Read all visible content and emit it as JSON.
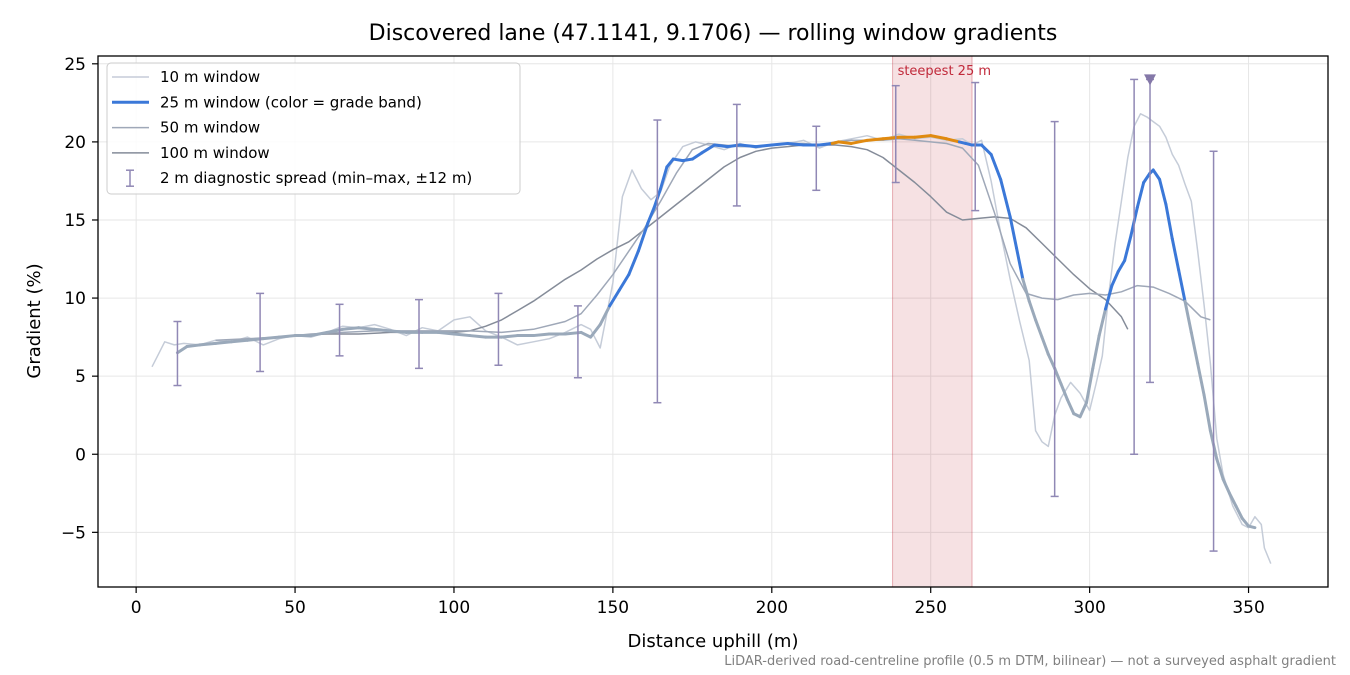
{
  "chart_data": {
    "type": "line",
    "title": "Discovered lane (47.1141, 9.1706) — rolling window gradients",
    "xlabel": "Distance uphill (m)",
    "ylabel": "Gradient (%)",
    "xlim": [
      -12,
      375
    ],
    "ylim": [
      -8.5,
      25.5
    ],
    "xticks": [
      0,
      50,
      100,
      150,
      200,
      250,
      300,
      350
    ],
    "yticks": [
      -5,
      0,
      5,
      10,
      15,
      20,
      25
    ],
    "ytick_labels": [
      "−5",
      "0",
      "5",
      "10",
      "15",
      "20",
      "25"
    ],
    "grid": true,
    "legend_position": "upper-left",
    "footnote": "LiDAR-derived road-centreline profile (0.5 m DTM, bilinear) — not a surveyed asphalt gradient",
    "annotation": {
      "text": "steepest 25 m",
      "x_range": [
        238,
        263
      ],
      "color": "#c0293a"
    },
    "peak_marker": {
      "x": 319,
      "y": 24,
      "color": "#8478a8"
    },
    "grade_band_colors": {
      "steep": "#e08a10",
      "moderate": "#3b78d8",
      "gentle": "#9aa9ba"
    },
    "series": [
      {
        "name": "10 m window",
        "color": "#c5ccd8",
        "x": [
          5,
          7,
          9,
          12,
          15,
          20,
          25,
          30,
          35,
          40,
          45,
          50,
          55,
          60,
          65,
          70,
          75,
          80,
          85,
          90,
          95,
          100,
          105,
          110,
          115,
          120,
          125,
          130,
          135,
          140,
          143,
          146,
          150,
          153,
          156,
          159,
          162,
          165,
          168,
          172,
          176,
          180,
          185,
          190,
          195,
          200,
          205,
          210,
          215,
          220,
          225,
          230,
          235,
          240,
          245,
          250,
          255,
          260,
          263,
          266,
          269,
          272,
          275,
          278,
          281,
          283,
          285,
          287,
          289,
          291,
          294,
          297,
          300,
          302,
          304,
          306,
          308,
          310,
          312,
          314,
          316,
          318,
          320,
          322,
          324,
          326,
          328,
          330,
          332,
          334,
          336,
          338,
          340,
          342,
          345,
          348,
          350,
          352,
          354,
          355,
          357
        ],
        "y": [
          5.6,
          6.4,
          7.2,
          7.0,
          7.1,
          7.0,
          7.3,
          7.2,
          7.5,
          7.0,
          7.4,
          7.6,
          7.5,
          7.8,
          8.2,
          8.1,
          8.3,
          8.0,
          7.6,
          8.1,
          7.9,
          8.6,
          8.8,
          7.9,
          7.5,
          7.0,
          7.2,
          7.4,
          7.8,
          8.3,
          8.0,
          6.8,
          11.0,
          16.5,
          18.2,
          17.0,
          16.3,
          16.8,
          18.5,
          19.7,
          20.0,
          19.8,
          19.5,
          19.9,
          19.6,
          19.8,
          19.9,
          20.1,
          19.6,
          20.0,
          20.2,
          20.4,
          20.1,
          20.5,
          20.2,
          20.3,
          20.1,
          20.2,
          19.8,
          20.1,
          17.5,
          14.2,
          11.2,
          8.5,
          6.0,
          1.5,
          0.8,
          0.5,
          2.5,
          3.6,
          4.6,
          3.9,
          2.8,
          4.5,
          6.3,
          10.2,
          13.5,
          16.2,
          19.0,
          21.0,
          21.8,
          21.6,
          21.3,
          21.0,
          20.3,
          19.2,
          18.5,
          17.3,
          16.2,
          13.0,
          9.6,
          5.8,
          1.0,
          -1.3,
          -3.3,
          -4.5,
          -4.7,
          -4.0,
          -4.5,
          -6.0,
          -7.0
        ]
      },
      {
        "name": "25 m window (color = grade band)",
        "color": "#3b78d8",
        "x": [
          13,
          16,
          20,
          25,
          30,
          35,
          40,
          45,
          50,
          55,
          60,
          65,
          70,
          75,
          80,
          85,
          90,
          95,
          100,
          105,
          110,
          115,
          120,
          125,
          130,
          135,
          140,
          143,
          146,
          149,
          152,
          155,
          158,
          161,
          163,
          165,
          167,
          169,
          172,
          175,
          178,
          182,
          186,
          190,
          195,
          200,
          205,
          210,
          215,
          219,
          221,
          225,
          230,
          235,
          240,
          245,
          250,
          255,
          259,
          261,
          263,
          266,
          269,
          272,
          275,
          277,
          279,
          281,
          283,
          285,
          287,
          289,
          291,
          293,
          295,
          297,
          299,
          301,
          303,
          305,
          307,
          309,
          311,
          313,
          315,
          317,
          319,
          320,
          322,
          324,
          326,
          328,
          330,
          332,
          334,
          336,
          338,
          340,
          342,
          344,
          346,
          348,
          350,
          352
        ],
        "y": [
          6.5,
          6.9,
          7.0,
          7.1,
          7.2,
          7.3,
          7.4,
          7.5,
          7.6,
          7.6,
          7.8,
          8.0,
          8.1,
          8.0,
          7.9,
          7.8,
          7.8,
          7.8,
          7.7,
          7.6,
          7.5,
          7.5,
          7.6,
          7.6,
          7.7,
          7.7,
          7.8,
          7.5,
          8.3,
          9.5,
          10.5,
          11.5,
          13.0,
          14.8,
          15.8,
          17.0,
          18.4,
          18.9,
          18.8,
          18.9,
          19.3,
          19.8,
          19.7,
          19.8,
          19.7,
          19.8,
          19.9,
          19.8,
          19.8,
          19.9,
          20.0,
          19.9,
          20.1,
          20.2,
          20.3,
          20.3,
          20.4,
          20.2,
          20.0,
          19.9,
          19.8,
          19.8,
          19.2,
          17.6,
          15.2,
          13.2,
          11.2,
          9.8,
          8.6,
          7.5,
          6.4,
          5.5,
          4.5,
          3.5,
          2.6,
          2.4,
          3.3,
          5.5,
          7.6,
          9.3,
          10.8,
          11.7,
          12.4,
          14.0,
          15.8,
          17.4,
          18.0,
          18.2,
          17.6,
          16.0,
          13.8,
          11.8,
          9.8,
          7.8,
          5.8,
          3.8,
          1.5,
          -0.3,
          -1.6,
          -2.5,
          -3.3,
          -4.1,
          -4.6,
          -4.7
        ],
        "grade": [
          "gentle",
          "gentle",
          "gentle",
          "gentle",
          "gentle",
          "gentle",
          "gentle",
          "gentle",
          "gentle",
          "gentle",
          "gentle",
          "gentle",
          "gentle",
          "gentle",
          "gentle",
          "gentle",
          "gentle",
          "gentle",
          "gentle",
          "gentle",
          "gentle",
          "gentle",
          "gentle",
          "gentle",
          "gentle",
          "gentle",
          "gentle",
          "gentle",
          "gentle",
          "gentle",
          "moderate",
          "moderate",
          "moderate",
          "moderate",
          "moderate",
          "moderate",
          "moderate",
          "moderate",
          "moderate",
          "moderate",
          "moderate",
          "moderate",
          "moderate",
          "moderate",
          "moderate",
          "moderate",
          "moderate",
          "moderate",
          "moderate",
          "moderate",
          "steep",
          "steep",
          "steep",
          "steep",
          "steep",
          "steep",
          "steep",
          "steep",
          "steep",
          "moderate",
          "moderate",
          "moderate",
          "moderate",
          "moderate",
          "moderate",
          "moderate",
          "moderate",
          "gentle",
          "gentle",
          "gentle",
          "gentle",
          "gentle",
          "gentle",
          "gentle",
          "gentle",
          "gentle",
          "gentle",
          "gentle",
          "gentle",
          "gentle",
          "moderate",
          "moderate",
          "moderate",
          "moderate",
          "moderate",
          "moderate",
          "moderate",
          "moderate",
          "moderate",
          "moderate",
          "moderate",
          "moderate",
          "moderate",
          "gentle",
          "gentle",
          "gentle",
          "gentle",
          "gentle",
          "gentle",
          "gentle",
          "gentle",
          "gentle",
          "gentle",
          "gentle"
        ]
      },
      {
        "name": "50 m window",
        "color": "#9fa8b8",
        "x": [
          25,
          35,
          45,
          55,
          65,
          75,
          85,
          95,
          105,
          115,
          125,
          135,
          140,
          145,
          150,
          155,
          160,
          165,
          170,
          175,
          180,
          185,
          190,
          195,
          200,
          205,
          210,
          215,
          220,
          225,
          230,
          235,
          240,
          245,
          250,
          255,
          260,
          265,
          270,
          275,
          280,
          285,
          290,
          295,
          300,
          305,
          310,
          315,
          320,
          325,
          330,
          335,
          338
        ],
        "y": [
          7.3,
          7.4,
          7.5,
          7.7,
          7.8,
          7.9,
          7.9,
          7.9,
          7.9,
          7.8,
          8.0,
          8.5,
          9.0,
          10.2,
          11.5,
          13.0,
          14.5,
          16.2,
          18.0,
          19.5,
          19.9,
          19.8,
          19.7,
          19.7,
          19.8,
          19.9,
          19.9,
          19.8,
          20.0,
          20.1,
          20.1,
          20.1,
          20.2,
          20.1,
          20.0,
          19.9,
          19.6,
          18.5,
          15.5,
          12.2,
          10.3,
          10.0,
          9.9,
          10.2,
          10.3,
          10.2,
          10.4,
          10.8,
          10.7,
          10.3,
          9.8,
          8.8,
          8.6
        ]
      },
      {
        "name": "100 m window",
        "color": "#858c99",
        "x": [
          50,
          60,
          70,
          80,
          90,
          100,
          105,
          110,
          115,
          120,
          125,
          130,
          135,
          140,
          145,
          150,
          155,
          160,
          165,
          170,
          175,
          180,
          185,
          190,
          195,
          200,
          205,
          210,
          215,
          220,
          225,
          230,
          235,
          240,
          245,
          250,
          255,
          260,
          265,
          270,
          275,
          280,
          285,
          290,
          295,
          300,
          305,
          310,
          312
        ],
        "y": [
          7.6,
          7.7,
          7.7,
          7.8,
          7.8,
          7.8,
          7.9,
          8.2,
          8.6,
          9.2,
          9.8,
          10.5,
          11.2,
          11.8,
          12.5,
          13.1,
          13.6,
          14.4,
          15.2,
          16.0,
          16.8,
          17.6,
          18.4,
          19.0,
          19.4,
          19.6,
          19.7,
          19.8,
          19.8,
          19.8,
          19.7,
          19.5,
          19.0,
          18.2,
          17.4,
          16.5,
          15.5,
          15.0,
          15.1,
          15.2,
          15.1,
          14.5,
          13.5,
          12.5,
          11.5,
          10.6,
          9.9,
          8.8,
          8.0
        ]
      },
      {
        "name": "2 m diagnostic spread (min–max, ±12 m)",
        "color": "#9088b5",
        "type": "errorbar",
        "points": [
          {
            "x": 13,
            "min": 4.4,
            "max": 8.5
          },
          {
            "x": 39,
            "min": 5.3,
            "max": 10.3
          },
          {
            "x": 64,
            "min": 6.3,
            "max": 9.6
          },
          {
            "x": 89,
            "min": 5.5,
            "max": 9.9
          },
          {
            "x": 114,
            "min": 5.7,
            "max": 10.3
          },
          {
            "x": 139,
            "min": 4.9,
            "max": 9.5
          },
          {
            "x": 164,
            "min": 3.3,
            "max": 21.4
          },
          {
            "x": 189,
            "min": 15.9,
            "max": 22.4
          },
          {
            "x": 214,
            "min": 16.9,
            "max": 21.0
          },
          {
            "x": 239,
            "min": 17.4,
            "max": 23.6
          },
          {
            "x": 264,
            "min": 15.6,
            "max": 23.8
          },
          {
            "x": 289,
            "min": -2.7,
            "max": 21.3
          },
          {
            "x": 314,
            "min": 0.0,
            "max": 24.0
          },
          {
            "x": 319,
            "min": 4.6,
            "max": 24.0
          },
          {
            "x": 339,
            "min": -6.2,
            "max": 19.4
          }
        ]
      }
    ]
  }
}
